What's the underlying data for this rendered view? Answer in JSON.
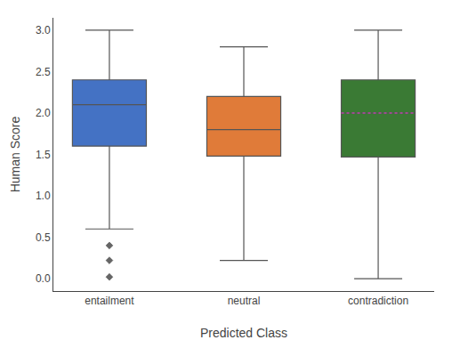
{
  "chart_data": {
    "type": "box",
    "xlabel": "Predicted Class",
    "ylabel": "Human Score",
    "categories": [
      "entailment",
      "neutral",
      "contradiction"
    ],
    "series": [
      {
        "name": "entailment",
        "color": "#4472C4",
        "q1": 1.6,
        "median": 2.1,
        "q3": 2.4,
        "whisker_low": 0.6,
        "whisker_high": 3.0,
        "outliers": [
          0.4,
          0.22,
          0.02
        ]
      },
      {
        "name": "neutral",
        "color": "#E07B39",
        "q1": 1.48,
        "median": 1.8,
        "q3": 2.2,
        "whisker_low": 0.22,
        "whisker_high": 2.8,
        "outliers": []
      },
      {
        "name": "contradiction",
        "color": "#3A7A34",
        "q1": 1.47,
        "median": 2.0,
        "q3": 2.4,
        "whisker_low": 0.0,
        "whisker_high": 3.0,
        "outliers": [],
        "mean": {
          "value": 2.0,
          "color": "#BB44AA",
          "line_style": "dotted"
        }
      }
    ],
    "marker": "diamond",
    "ylim": [
      -0.15,
      3.15
    ],
    "yticks": [
      {
        "value": 0.0,
        "label": "0.0"
      },
      {
        "value": 0.5,
        "label": "0.5"
      },
      {
        "value": 1.0,
        "label": "1.0"
      },
      {
        "value": 1.5,
        "label": "1.5"
      },
      {
        "value": 2.0,
        "label": "2.0"
      },
      {
        "value": 2.5,
        "label": "2.5"
      },
      {
        "value": 3.0,
        "label": "3.0"
      }
    ],
    "grid": false
  }
}
